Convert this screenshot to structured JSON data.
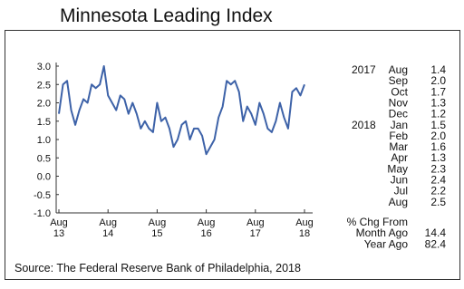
{
  "chart_data": {
    "type": "line",
    "title": "Minnesota Leading Index",
    "categories": [
      "Aug 13",
      null,
      null,
      null,
      null,
      null,
      null,
      null,
      null,
      null,
      null,
      null,
      "Aug 14",
      null,
      null,
      null,
      null,
      null,
      null,
      null,
      null,
      null,
      null,
      null,
      "Aug 15",
      null,
      null,
      null,
      null,
      null,
      null,
      null,
      null,
      null,
      null,
      null,
      "Aug 16",
      null,
      null,
      null,
      null,
      null,
      null,
      null,
      null,
      null,
      null,
      null,
      "Aug 17",
      null,
      null,
      null,
      null,
      null,
      null,
      null,
      null,
      null,
      null,
      null,
      "Aug 18"
    ],
    "series": [
      {
        "name": "Minnesota Leading Index",
        "color": "#3d62a8",
        "values": [
          1.7,
          2.5,
          2.6,
          1.8,
          1.4,
          1.8,
          2.1,
          2.0,
          2.5,
          2.4,
          2.5,
          3.0,
          2.2,
          2.0,
          1.8,
          2.2,
          2.1,
          1.7,
          2.0,
          1.7,
          1.3,
          1.5,
          1.3,
          1.2,
          2.0,
          1.5,
          1.6,
          1.3,
          0.8,
          1.0,
          1.4,
          1.5,
          1.0,
          1.3,
          1.3,
          1.1,
          0.6,
          0.8,
          1.0,
          1.6,
          1.9,
          2.6,
          2.5,
          2.6,
          2.3,
          1.5,
          1.9,
          1.7,
          1.4,
          2.0,
          1.7,
          1.3,
          1.2,
          1.5,
          2.0,
          1.6,
          1.3,
          2.3,
          2.4,
          2.2,
          2.5
        ]
      }
    ],
    "ylim": [
      -1,
      3
    ],
    "yticks": [
      {
        "value": -1,
        "label": "-1.0"
      },
      -0.5,
      {
        "value": 0,
        "label": "0.0"
      },
      0.5,
      {
        "value": 1,
        "label": "1.0"
      },
      1.5,
      {
        "value": 2,
        "label": "2.0"
      },
      2.5,
      {
        "value": 3,
        "label": "3.0"
      }
    ],
    "grid": false
  },
  "side_table": {
    "rows": [
      {
        "year": "2017",
        "month": "Aug",
        "value": "1.4"
      },
      {
        "month": "Sep",
        "value": "2.0"
      },
      {
        "month": "Oct",
        "value": "1.7"
      },
      {
        "month": "Nov",
        "value": "1.3"
      },
      {
        "month": "Dec",
        "value": "1.2"
      },
      {
        "year": "2018",
        "month": "Jan",
        "value": "1.5"
      },
      {
        "month": "Feb",
        "value": "2.0"
      },
      {
        "month": "Mar",
        "value": "1.6"
      },
      {
        "month": "Apr",
        "value": "1.3"
      },
      {
        "month": "May",
        "value": "2.3"
      },
      {
        "month": "Jun",
        "value": "2.4"
      },
      {
        "month": "Jul",
        "value": "2.2"
      },
      {
        "month": "Aug",
        "value": "2.5"
      }
    ],
    "change_header": "% Chg From",
    "changes": [
      {
        "label": "Month Ago",
        "value": "14.4"
      },
      {
        "label": "Year Ago",
        "value": "82.4"
      }
    ]
  },
  "source": "Source: The Federal Reserve Bank of Philadelphia, 2018"
}
